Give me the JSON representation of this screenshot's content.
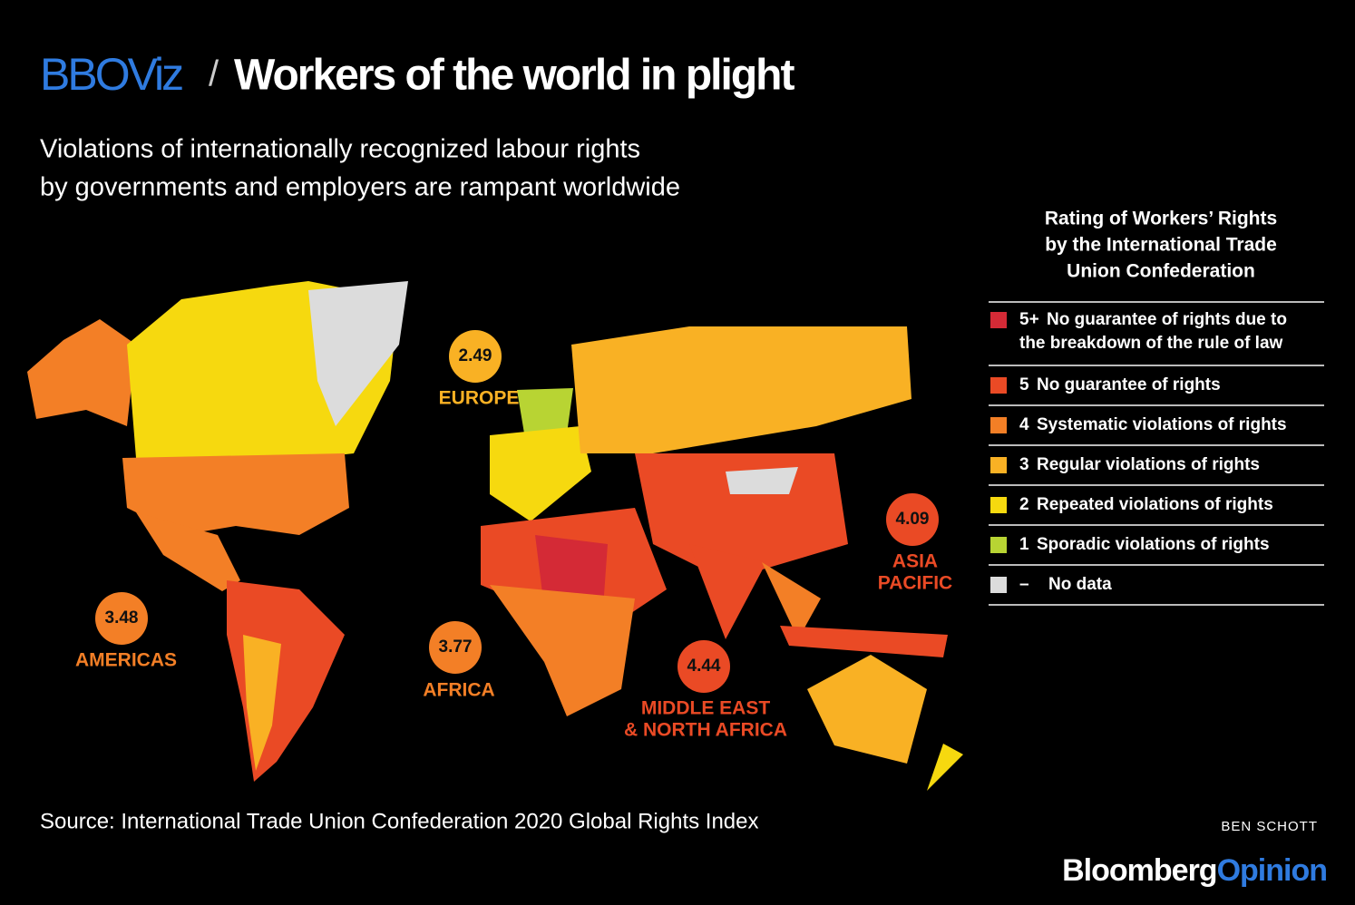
{
  "header": {
    "brand": "BBOViz",
    "separator": "/",
    "title": "Workers of the world in plight",
    "subtitle": [
      "Violations of internationally recognized labour rights",
      "by governments and employers are rampant worldwide"
    ]
  },
  "legend": {
    "title": [
      "Rating of Workers’ Rights",
      "by the International Trade",
      "Union Confederation"
    ],
    "items": [
      {
        "code": "5+",
        "text": [
          "No guarantee of rights due to",
          "the breakdown of the rule of law"
        ],
        "color": "#d42a36"
      },
      {
        "code": "5",
        "text": [
          "No guarantee of rights"
        ],
        "color": "#ea4a25"
      },
      {
        "code": "4",
        "text": [
          "Systematic violations of rights"
        ],
        "color": "#f37f26"
      },
      {
        "code": "3",
        "text": [
          "Regular violations of rights"
        ],
        "color": "#f9b124"
      },
      {
        "code": "2",
        "text": [
          "Repeated violations of rights"
        ],
        "color": "#f6d90f"
      },
      {
        "code": "1",
        "text": [
          "Sporadic violations of rights"
        ],
        "color": "#b8d433"
      },
      {
        "code": "–",
        "text": [
          "No data"
        ],
        "color": "#dcdcdc"
      }
    ]
  },
  "regions": [
    {
      "name": [
        "EUROPE"
      ],
      "value": 2.49,
      "color": "#f9b124"
    },
    {
      "name": [
        "AMERICAS"
      ],
      "value": 3.48,
      "color": "#f37f26"
    },
    {
      "name": [
        "AFRICA"
      ],
      "value": 3.77,
      "color": "#f37f26"
    },
    {
      "name": [
        "MIDDLE EAST",
        "& NORTH AFRICA"
      ],
      "value": 4.44,
      "color": "#ea4a25"
    },
    {
      "name": [
        "ASIA",
        "PACIFIC"
      ],
      "value": 4.09,
      "color": "#ea4a25"
    }
  ],
  "footer": {
    "source": "Source: International Trade Union Confederation 2020 Global Rights Index",
    "byline": "BEN SCHOTT",
    "logo": [
      "Bloomberg",
      "Opinion"
    ]
  }
}
